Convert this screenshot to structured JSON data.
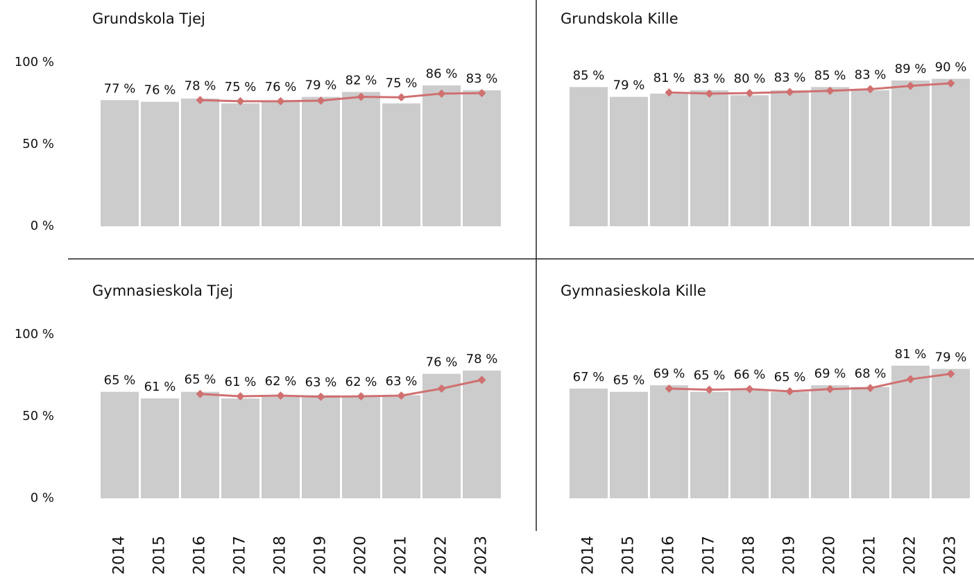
{
  "chart_data": [
    {
      "type": "bar",
      "title": "Grundskola Tjej",
      "ylim": [
        0,
        100
      ],
      "yticks": [
        {
          "value": 0,
          "label": "0 %"
        },
        {
          "value": 50,
          "label": "50 %"
        },
        {
          "value": 100,
          "label": "100 %"
        }
      ],
      "series": [
        {
          "type": "bar",
          "color": "#cccccc",
          "values": [
            77,
            76,
            78,
            75,
            76,
            79,
            82,
            75,
            86,
            83
          ],
          "value_labels": [
            "77 %",
            "76 %",
            "78 %",
            "75 %",
            "76 %",
            "79 %",
            "82 %",
            "75 %",
            "86 %",
            "83 %"
          ]
        },
        {
          "type": "line",
          "color": "#d07070",
          "values": [
            null,
            null,
            77,
            76.3,
            76.3,
            76.7,
            79,
            78.7,
            81,
            81.3
          ]
        }
      ]
    },
    {
      "type": "bar",
      "title": "Grundskola Kille",
      "ylim": [
        0,
        100
      ],
      "series": [
        {
          "type": "bar",
          "color": "#cccccc",
          "values": [
            85,
            79,
            81,
            83,
            80,
            83,
            85,
            83,
            89,
            90
          ],
          "value_labels": [
            "85 %",
            "79 %",
            "81 %",
            "83 %",
            "80 %",
            "83 %",
            "85 %",
            "83 %",
            "89 %",
            "90 %"
          ]
        },
        {
          "type": "line",
          "color": "#d07070",
          "values": [
            null,
            null,
            81.7,
            81,
            81.3,
            82,
            82.7,
            83.7,
            85.7,
            87.3
          ]
        }
      ]
    },
    {
      "type": "bar",
      "title": "Gymnasieskola Tjej",
      "ylim": [
        0,
        100
      ],
      "yticks": [
        {
          "value": 0,
          "label": "0 %"
        },
        {
          "value": 50,
          "label": "50 %"
        },
        {
          "value": 100,
          "label": "100 %"
        }
      ],
      "categories": [
        "2014",
        "2015",
        "2016",
        "2017",
        "2018",
        "2019",
        "2020",
        "2021",
        "2022",
        "2023"
      ],
      "series": [
        {
          "type": "bar",
          "color": "#cccccc",
          "values": [
            65,
            61,
            65,
            61,
            62,
            63,
            62,
            63,
            76,
            78
          ],
          "value_labels": [
            "65 %",
            "61 %",
            "65 %",
            "61 %",
            "62 %",
            "63 %",
            "62 %",
            "63 %",
            "76 %",
            "78 %"
          ]
        },
        {
          "type": "line",
          "color": "#d07070",
          "values": [
            null,
            null,
            63.7,
            62.3,
            62.7,
            62,
            62.3,
            62.7,
            67,
            72.3
          ]
        }
      ]
    },
    {
      "type": "bar",
      "title": "Gymnasieskola Kille",
      "ylim": [
        0,
        100
      ],
      "categories": [
        "2014",
        "2015",
        "2016",
        "2017",
        "2018",
        "2019",
        "2020",
        "2021",
        "2022",
        "2023"
      ],
      "series": [
        {
          "type": "bar",
          "color": "#cccccc",
          "values": [
            67,
            65,
            69,
            65,
            66,
            65,
            69,
            68,
            81,
            79
          ],
          "value_labels": [
            "67 %",
            "65 %",
            "69 %",
            "65 %",
            "66 %",
            "65 %",
            "69 %",
            "68 %",
            "81 %",
            "79 %"
          ]
        },
        {
          "type": "line",
          "color": "#d07070",
          "values": [
            null,
            null,
            67,
            66.3,
            66.7,
            65.3,
            66.7,
            67.3,
            72.7,
            76
          ]
        }
      ]
    }
  ]
}
